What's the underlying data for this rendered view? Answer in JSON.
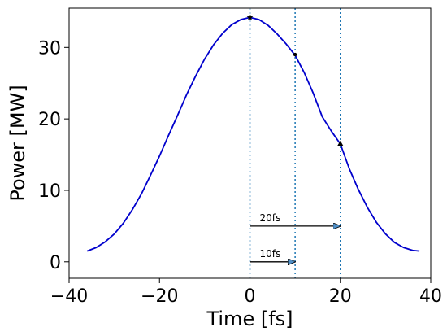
{
  "chart_data": {
    "type": "line",
    "title": "",
    "xlabel": "Time [fs]",
    "ylabel": "Power [MW]",
    "xlim": [
      -40,
      40
    ],
    "ylim": [
      -2.3,
      35.5
    ],
    "xticks": [
      -40,
      -20,
      0,
      20,
      40
    ],
    "xtick_labels": [
      "−40",
      "−20",
      "0",
      "20",
      "40"
    ],
    "yticks": [
      0,
      10,
      20,
      30
    ],
    "ytick_labels": [
      "0",
      "10",
      "20",
      "30"
    ],
    "grid": false,
    "series": [
      {
        "color": "#0000cc",
        "x": [
          -36,
          -34,
          -32,
          -30,
          -28,
          -26,
          -24,
          -22,
          -20,
          -18,
          -16,
          -14,
          -12,
          -10,
          -8,
          -6,
          -4,
          -2,
          0,
          2,
          4,
          6,
          8,
          10,
          12,
          14,
          16,
          18,
          20,
          22,
          24,
          26,
          28,
          30,
          32,
          34,
          36,
          37.5
        ],
        "y": [
          1.5,
          2.0,
          2.8,
          3.9,
          5.4,
          7.3,
          9.5,
          12.1,
          14.8,
          17.7,
          20.5,
          23.4,
          26.0,
          28.4,
          30.4,
          32.0,
          33.2,
          33.9,
          34.2,
          33.9,
          33.1,
          31.9,
          30.5,
          28.9,
          26.5,
          23.6,
          20.3,
          18.3,
          16.5,
          13.0,
          10.1,
          7.6,
          5.5,
          3.9,
          2.7,
          2.0,
          1.6,
          1.5
        ]
      }
    ],
    "markers": [
      {
        "x": 0,
        "y": 34.2,
        "symbol": "star"
      },
      {
        "x": 10,
        "y": 29.0,
        "symbol": "dot"
      },
      {
        "x": 20,
        "y": 16.5,
        "symbol": "triangle"
      }
    ],
    "vlines": [
      {
        "x": 0,
        "color": "#1f77b4",
        "style": "dotted"
      },
      {
        "x": 10,
        "color": "#1f77b4",
        "style": "dotted"
      },
      {
        "x": 20,
        "color": "#1f77b4",
        "style": "dotted"
      }
    ],
    "annotations": [
      {
        "text": "20fs",
        "x0": 0,
        "x1": 20,
        "y": 5
      },
      {
        "text": "10fs",
        "x0": 0,
        "x1": 10,
        "y": 0
      }
    ]
  }
}
